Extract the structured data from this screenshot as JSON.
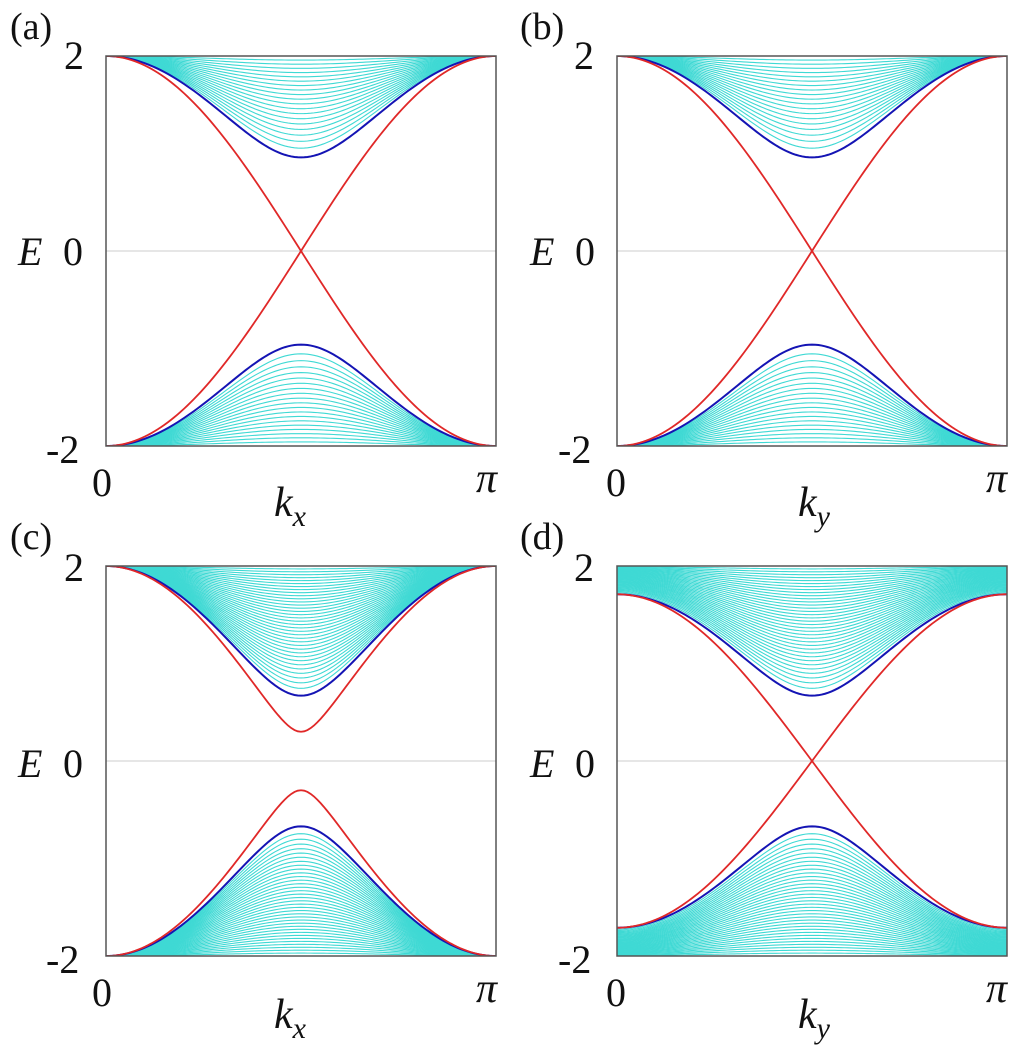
{
  "figure": {
    "colors": {
      "bulk": "#3fd9d4",
      "edge_blue": "#1414b4",
      "edge_red": "#e02828",
      "axis": "#555555",
      "zero_line": "#cccccc"
    }
  },
  "panels": [
    {
      "letter": "(a)",
      "ytick_top": "2",
      "ytick_mid": "0",
      "ytick_bot": "-2",
      "ylabel": "E",
      "xtick_left": "0",
      "xtick_right": "π",
      "xlabel_main": "k",
      "xlabel_sub": "x"
    },
    {
      "letter": "(b)",
      "ytick_top": "2",
      "ytick_mid": "0",
      "ytick_bot": "-2",
      "ylabel": "E",
      "xtick_left": "0",
      "xtick_right": "π",
      "xlabel_main": "k",
      "xlabel_sub": "y"
    },
    {
      "letter": "(c)",
      "ytick_top": "2",
      "ytick_mid": "0",
      "ytick_bot": "-2",
      "ylabel": "E",
      "xtick_left": "0",
      "xtick_right": "π",
      "xlabel_main": "k",
      "xlabel_sub": "x"
    },
    {
      "letter": "(d)",
      "ytick_top": "2",
      "ytick_mid": "0",
      "ytick_bot": "-2",
      "ylabel": "E",
      "xtick_left": "0",
      "xtick_right": "π",
      "xlabel_main": "k",
      "xlabel_sub": "y"
    }
  ],
  "chart_data": [
    {
      "type": "line",
      "title": "(a)",
      "xlabel": "k_x",
      "ylabel": "E",
      "xlim": [
        0,
        3.14159
      ],
      "ylim": [
        -2,
        2
      ],
      "xticks": [
        "0",
        "π"
      ],
      "yticks": [
        "-2",
        "0",
        "2"
      ],
      "grid": false,
      "series": [
        {
          "name": "edge states (red)",
          "color": "#e02828",
          "kind": "gapless",
          "E_at_0_and_pi": 2.0,
          "E_at_center": 0.0
        },
        {
          "name": "lowest bulk band (blue)",
          "color": "#1414b4",
          "kind": "gapped",
          "E_at_0_and_pi": 2.0,
          "E_at_center": 0.96
        },
        {
          "name": "bulk bands (cyan)",
          "color": "#3fd9d4",
          "kind": "bulk",
          "count": 20,
          "E_at_0_and_pi_range": [
            2.0,
            2.0
          ],
          "E_at_center_range": [
            0.96,
            2.0
          ]
        }
      ]
    },
    {
      "type": "line",
      "title": "(b)",
      "xlabel": "k_y",
      "ylabel": "E",
      "xlim": [
        0,
        3.14159
      ],
      "ylim": [
        -2,
        2
      ],
      "xticks": [
        "0",
        "π"
      ],
      "yticks": [
        "-2",
        "0",
        "2"
      ],
      "grid": false,
      "series": [
        {
          "name": "edge states (red)",
          "color": "#e02828",
          "kind": "gapless",
          "E_at_0_and_pi": 2.0,
          "E_at_center": 0.0
        },
        {
          "name": "lowest bulk band (blue)",
          "color": "#1414b4",
          "kind": "gapped",
          "E_at_0_and_pi": 2.0,
          "E_at_center": 0.96
        },
        {
          "name": "bulk bands (cyan)",
          "color": "#3fd9d4",
          "kind": "bulk",
          "count": 20,
          "E_at_0_and_pi_range": [
            2.0,
            2.0
          ],
          "E_at_center_range": [
            0.96,
            2.0
          ]
        }
      ]
    },
    {
      "type": "line",
      "title": "(c)",
      "xlabel": "k_x",
      "ylabel": "E",
      "xlim": [
        0,
        3.14159
      ],
      "ylim": [
        -2,
        2
      ],
      "xticks": [
        "0",
        "π"
      ],
      "yticks": [
        "-2",
        "0",
        "2"
      ],
      "grid": false,
      "series": [
        {
          "name": "edge states (red)",
          "color": "#e02828",
          "kind": "gapped",
          "E_at_0_and_pi": 2.0,
          "E_at_center": 0.3
        },
        {
          "name": "lowest bulk band (blue)",
          "color": "#1414b4",
          "kind": "gapped",
          "E_at_0_and_pi": 2.0,
          "E_at_center": 0.67
        },
        {
          "name": "bulk bands (cyan)",
          "color": "#3fd9d4",
          "kind": "bulk",
          "count": 36,
          "E_at_0_and_pi_range": [
            2.0,
            2.0
          ],
          "E_at_center_range": [
            0.67,
            2.0
          ]
        }
      ]
    },
    {
      "type": "line",
      "title": "(d)",
      "xlabel": "k_y",
      "ylabel": "E",
      "xlim": [
        0,
        3.14159
      ],
      "ylim": [
        -2,
        2
      ],
      "xticks": [
        "0",
        "π"
      ],
      "yticks": [
        "-2",
        "0",
        "2"
      ],
      "grid": false,
      "series": [
        {
          "name": "edge states (red)",
          "color": "#e02828",
          "kind": "gapless",
          "E_at_0_and_pi": 1.71,
          "E_at_center": 0.0
        },
        {
          "name": "lowest bulk band (blue)",
          "color": "#1414b4",
          "kind": "gapped",
          "E_at_0_and_pi": 1.71,
          "E_at_center": 0.67
        },
        {
          "name": "bulk bands (cyan)",
          "color": "#3fd9d4",
          "kind": "bulk",
          "count": 36,
          "E_at_0_and_pi_range": [
            1.71,
            2.0
          ],
          "E_at_center_range": [
            0.67,
            2.0
          ]
        }
      ]
    }
  ]
}
